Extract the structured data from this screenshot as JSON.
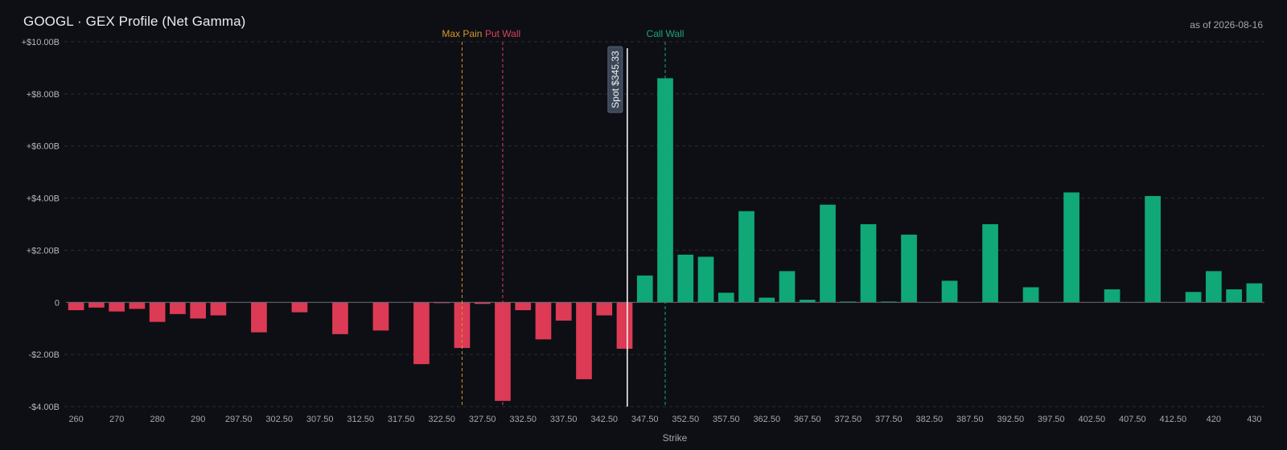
{
  "header": {
    "title": "GOOGL · GEX Profile (Net Gamma)",
    "as_of": "as of 2026-08-16"
  },
  "colors": {
    "background": "#0d0f14",
    "positive": "#10a877",
    "negative": "#dc3a55",
    "max_pain": "#d9962a",
    "put_wall": "#d8425d",
    "call_wall": "#1fa37a",
    "spot": "#ffffff",
    "grid": "#2a2e36"
  },
  "chart_data": {
    "type": "bar",
    "title": "GOOGL · GEX Profile (Net Gamma)",
    "xlabel": "Strike",
    "ylabel": "",
    "unit": "$B",
    "ylim": [
      -4,
      10
    ],
    "yticks": [
      -4,
      -2,
      0,
      2,
      4,
      6,
      8,
      10
    ],
    "ytick_labels": [
      "-$4.00B",
      "-$2.00B",
      "0",
      "+$2.00B",
      "+$4.00B",
      "+$6.00B",
      "+$8.00B",
      "+$10.00B"
    ],
    "grid": "horizontal dashed",
    "categories": [
      "260",
      "265",
      "270",
      "275",
      "280",
      "285",
      "290",
      "295",
      "297.50",
      "300",
      "302.50",
      "305",
      "307.50",
      "310",
      "312.50",
      "315",
      "317.50",
      "320",
      "322.50",
      "325",
      "327.50",
      "330",
      "332.50",
      "335",
      "337.50",
      "340",
      "342.50",
      "345",
      "347.50",
      "350",
      "352.50",
      "355",
      "357.50",
      "360",
      "362.50",
      "365",
      "367.50",
      "370",
      "372.50",
      "375",
      "377.50",
      "380",
      "382.50",
      "385",
      "387.50",
      "390",
      "392.50",
      "395",
      "397.50",
      "400",
      "402.50",
      "405",
      "407.50",
      "410",
      "412.50",
      "415",
      "420",
      "425",
      "430"
    ],
    "xtick_labels": [
      "260",
      "",
      "270",
      "",
      "280",
      "",
      "290",
      "",
      "297.50",
      "",
      "302.50",
      "",
      "307.50",
      "",
      "312.50",
      "",
      "317.50",
      "",
      "322.50",
      "",
      "327.50",
      "",
      "332.50",
      "",
      "337.50",
      "",
      "342.50",
      "",
      "347.50",
      "",
      "352.50",
      "",
      "357.50",
      "",
      "362.50",
      "",
      "367.50",
      "",
      "372.50",
      "",
      "377.50",
      "",
      "382.50",
      "",
      "387.50",
      "",
      "392.50",
      "",
      "397.50",
      "",
      "402.50",
      "",
      "407.50",
      "",
      "412.50",
      "",
      "420",
      "",
      "430"
    ],
    "values": [
      -0.3,
      -0.2,
      -0.35,
      -0.25,
      -0.75,
      -0.45,
      -0.62,
      -0.5,
      0,
      -1.15,
      0,
      -0.38,
      0,
      -1.22,
      0,
      -1.08,
      0,
      -2.37,
      -0.03,
      -1.75,
      -0.06,
      -3.78,
      -0.3,
      -1.42,
      -0.7,
      -2.95,
      -0.5,
      -1.78,
      1.03,
      8.6,
      1.83,
      1.75,
      0.37,
      3.5,
      0.18,
      1.2,
      0.1,
      3.75,
      0.03,
      3.0,
      0.03,
      2.6,
      0,
      0.83,
      0,
      3.0,
      0,
      0.58,
      0,
      4.22,
      0,
      0.5,
      0,
      4.08,
      0,
      0.4,
      1.2,
      0.5,
      0.73
    ],
    "reference_lines": [
      {
        "name": "Max Pain",
        "strike": 325
      },
      {
        "name": "Put Wall",
        "strike": 330
      },
      {
        "name": "Call Wall",
        "strike": 350
      },
      {
        "name": "Spot $345.33",
        "strike": 345.33
      }
    ]
  }
}
